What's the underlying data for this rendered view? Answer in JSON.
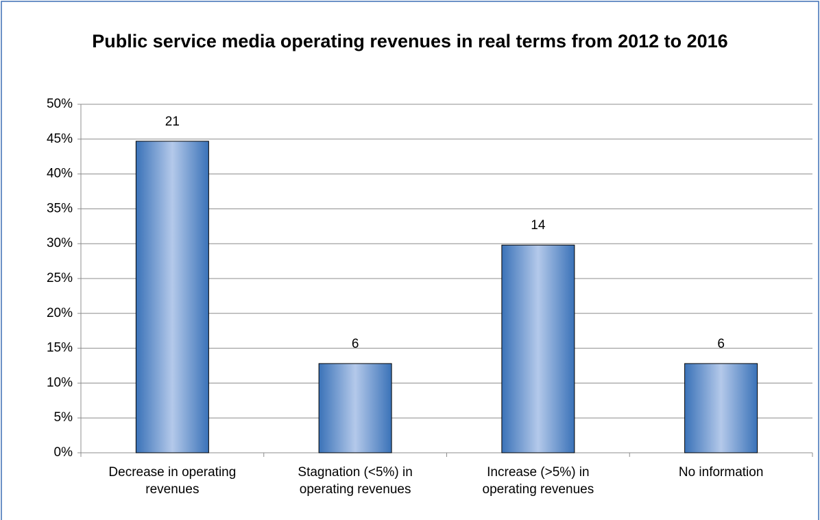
{
  "chart_data": {
    "type": "bar",
    "title": "Public service media operating revenues in real terms from 2012 to 2016",
    "categories": [
      "Decrease in operating revenues",
      "Stagnation (<5%) in operating revenues",
      "Increase (>5%) in operating revenues",
      "No information"
    ],
    "values": [
      44.7,
      12.8,
      29.8,
      12.8
    ],
    "counts": [
      21,
      6,
      14,
      6
    ],
    "ylim": [
      0,
      50
    ],
    "yticks": [
      {
        "value": 0,
        "label": "0%"
      },
      {
        "value": 5,
        "label": "5%"
      },
      {
        "value": 10,
        "label": "10%"
      },
      {
        "value": 15,
        "label": "15%"
      },
      {
        "value": 20,
        "label": "20%"
      },
      {
        "value": 25,
        "label": "25%"
      },
      {
        "value": 30,
        "label": "30%"
      },
      {
        "value": 35,
        "label": "35%"
      },
      {
        "value": 40,
        "label": "40%"
      },
      {
        "value": 45,
        "label": "45%"
      },
      {
        "value": 50,
        "label": "50%"
      }
    ],
    "grid": true
  }
}
